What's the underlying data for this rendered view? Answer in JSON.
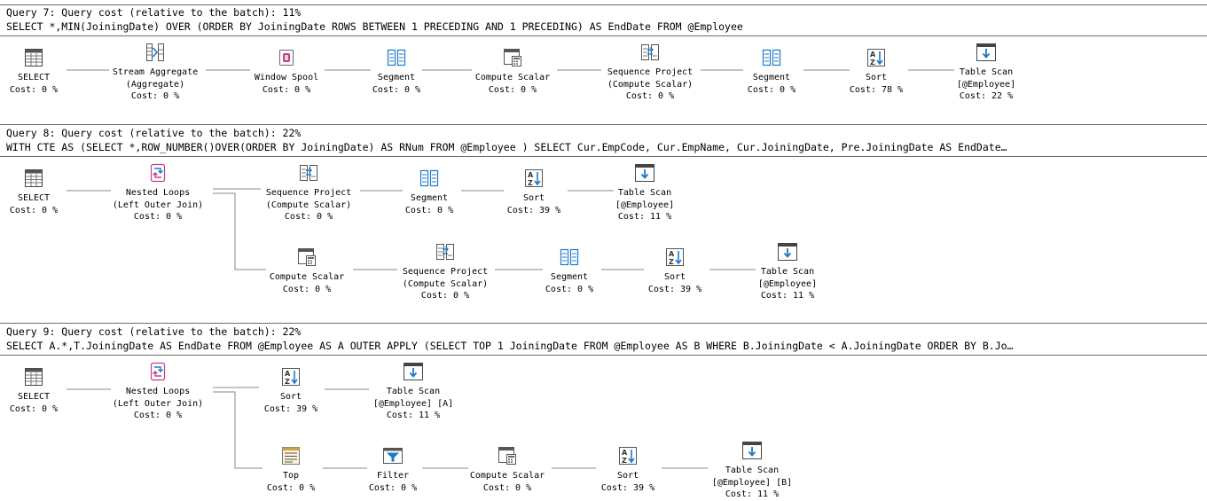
{
  "queries": [
    {
      "header": "Query 7: Query cost (relative to the batch): 11%",
      "sql": "SELECT *,MIN(JoiningDate) OVER (ORDER BY JoiningDate ROWS BETWEEN 1 PRECEDING AND 1 PRECEDING) AS EndDate FROM @Employee",
      "nodes": {
        "select": {
          "name": "SELECT",
          "cost": "Cost: 0 %"
        },
        "stream_agg": {
          "name": "Stream Aggregate",
          "sub": "(Aggregate)",
          "cost": "Cost: 0 %"
        },
        "window_spool": {
          "name": "Window Spool",
          "cost": "Cost: 0 %"
        },
        "segment1": {
          "name": "Segment",
          "cost": "Cost: 0 %"
        },
        "compute_scalar": {
          "name": "Compute Scalar",
          "cost": "Cost: 0 %"
        },
        "seq_project": {
          "name": "Sequence Project",
          "sub": "(Compute Scalar)",
          "cost": "Cost: 0 %"
        },
        "segment2": {
          "name": "Segment",
          "cost": "Cost: 0 %"
        },
        "sort": {
          "name": "Sort",
          "cost": "Cost: 78 %"
        },
        "table_scan": {
          "name": "Table Scan",
          "sub": "[@Employee]",
          "cost": "Cost: 22 %"
        }
      }
    },
    {
      "header": "Query 8: Query cost (relative to the batch): 22%",
      "sql": "WITH CTE AS (SELECT *,ROW_NUMBER()OVER(ORDER BY JoiningDate) AS RNum FROM @Employee ) SELECT Cur.EmpCode, Cur.EmpName, Cur.JoiningDate, Pre.JoiningDate AS EndDate…",
      "nodes": {
        "select": {
          "name": "SELECT",
          "cost": "Cost: 0 %"
        },
        "nested_loops": {
          "name": "Nested Loops",
          "sub": "(Left Outer Join)",
          "cost": "Cost: 0 %"
        },
        "seq_project_a": {
          "name": "Sequence Project",
          "sub": "(Compute Scalar)",
          "cost": "Cost: 0 %"
        },
        "segment_a": {
          "name": "Segment",
          "cost": "Cost: 0 %"
        },
        "sort_a": {
          "name": "Sort",
          "cost": "Cost: 39 %"
        },
        "table_scan_a": {
          "name": "Table Scan",
          "sub": "[@Employee]",
          "cost": "Cost: 11 %"
        },
        "compute_scalar_b": {
          "name": "Compute Scalar",
          "cost": "Cost: 0 %"
        },
        "seq_project_b": {
          "name": "Sequence Project",
          "sub": "(Compute Scalar)",
          "cost": "Cost: 0 %"
        },
        "segment_b": {
          "name": "Segment",
          "cost": "Cost: 0 %"
        },
        "sort_b": {
          "name": "Sort",
          "cost": "Cost: 39 %"
        },
        "table_scan_b": {
          "name": "Table Scan",
          "sub": "[@Employee]",
          "cost": "Cost: 11 %"
        }
      }
    },
    {
      "header": "Query 9: Query cost (relative to the batch): 22%",
      "sql": "SELECT A.*,T.JoiningDate AS EndDate FROM @Employee AS A OUTER APPLY (SELECT TOP 1 JoiningDate FROM @Employee AS B WHERE B.JoiningDate < A.JoiningDate ORDER BY B.Jo…",
      "nodes": {
        "select": {
          "name": "SELECT",
          "cost": "Cost: 0 %"
        },
        "nested_loops": {
          "name": "Nested Loops",
          "sub": "(Left Outer Join)",
          "cost": "Cost: 0 %"
        },
        "sort_a": {
          "name": "Sort",
          "cost": "Cost: 39 %"
        },
        "table_scan_a": {
          "name": "Table Scan",
          "sub": "[@Employee] [A]",
          "cost": "Cost: 11 %"
        },
        "top": {
          "name": "Top",
          "cost": "Cost: 0 %"
        },
        "filter": {
          "name": "Filter",
          "cost": "Cost: 0 %"
        },
        "compute_scalar": {
          "name": "Compute Scalar",
          "cost": "Cost: 0 %"
        },
        "sort_b": {
          "name": "Sort",
          "cost": "Cost: 39 %"
        },
        "table_scan_b": {
          "name": "Table Scan",
          "sub": "[@Employee] [B]",
          "cost": "Cost: 11 %"
        }
      }
    }
  ],
  "icons": {
    "select": "select-icon",
    "stream_aggregate": "stream-aggregate-icon",
    "window_spool": "window-spool-icon",
    "segment": "segment-icon",
    "compute_scalar": "compute-scalar-icon",
    "sequence_project": "sequence-project-icon",
    "sort": "sort-icon",
    "table_scan": "table-scan-icon",
    "nested_loops": "nested-loops-icon",
    "top": "top-icon",
    "filter": "filter-icon"
  },
  "colors": {
    "wire": "#8a8a8a",
    "icon_blue": "#1e78c8",
    "icon_pink": "#c0408a",
    "separator": "#6d6d6d"
  }
}
